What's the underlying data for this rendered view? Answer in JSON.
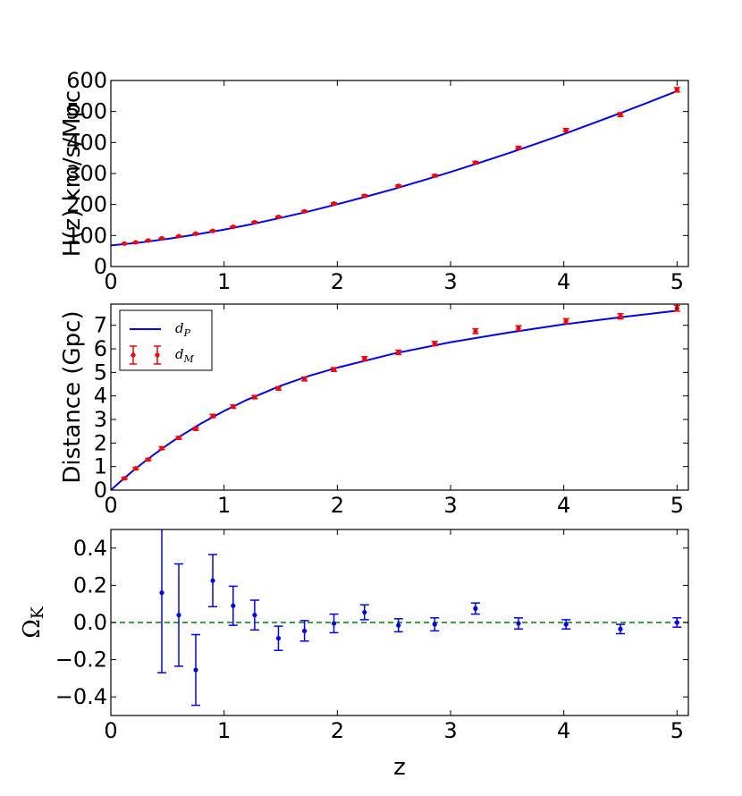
{
  "colors": {
    "model_line": "#0000ff",
    "data_red": "#ff0000",
    "omega_points": "#0000ff",
    "zero_line": "#008000",
    "frame": "#000000"
  },
  "chart_data": [
    {
      "type": "line",
      "title": "",
      "xlabel": "",
      "ylabel": "H(z) km/s/Mpc",
      "xlim": [
        0,
        5.1
      ],
      "ylim": [
        0,
        600
      ],
      "xticks": [
        "0",
        "1",
        "2",
        "3",
        "4",
        "5"
      ],
      "yticks": [
        "0",
        "100",
        "200",
        "300",
        "400",
        "500",
        "600"
      ],
      "series": [
        {
          "role": "model",
          "style": "line",
          "x": [
            0,
            0.25,
            0.5,
            0.75,
            1.0,
            1.25,
            1.5,
            1.75,
            2.0,
            2.25,
            2.5,
            2.75,
            3.0,
            3.25,
            3.5,
            3.75,
            4.0,
            4.25,
            4.5,
            4.75,
            5.0
          ],
          "y": [
            68,
            77,
            89,
            103,
            119,
            137,
            157,
            178,
            201,
            225,
            250,
            277,
            305,
            334,
            364,
            395,
            427,
            461,
            495,
            530,
            566
          ]
        },
        {
          "role": "measurements",
          "style": "errorbar",
          "x": [
            0.12,
            0.22,
            0.33,
            0.45,
            0.6,
            0.75,
            0.9,
            1.08,
            1.27,
            1.48,
            1.71,
            1.97,
            2.24,
            2.54,
            2.86,
            3.22,
            3.6,
            4.02,
            4.5,
            5.0
          ],
          "y": [
            74,
            78,
            84,
            91,
            98,
            106,
            115,
            128,
            143,
            160,
            178,
            203,
            228,
            260,
            293,
            335,
            383,
            440,
            490,
            570
          ],
          "err": [
            1,
            1,
            1,
            1,
            1,
            1.5,
            1.5,
            2,
            2,
            2,
            2.5,
            2.5,
            3,
            3,
            3.5,
            4,
            4,
            5,
            6,
            7
          ]
        }
      ]
    },
    {
      "type": "line",
      "title": "",
      "xlabel": "",
      "ylabel": "Distance (Gpc)",
      "xlim": [
        0,
        5.1
      ],
      "ylim": [
        0,
        7.9
      ],
      "xticks": [
        "0",
        "1",
        "2",
        "3",
        "4",
        "5"
      ],
      "yticks": [
        "0",
        "1",
        "2",
        "3",
        "4",
        "5",
        "6",
        "7"
      ],
      "legend": {
        "position": "upper-left",
        "entries": [
          {
            "label": "d_P",
            "base": "d",
            "sub": "P",
            "style": "line"
          },
          {
            "label": "d_M",
            "base": "d",
            "sub": "M",
            "style": "errorbar"
          }
        ]
      },
      "series": [
        {
          "name": "d_P",
          "style": "line",
          "x": [
            0,
            0.1,
            0.2,
            0.3,
            0.4,
            0.5,
            0.6,
            0.8,
            1.0,
            1.2,
            1.5,
            1.75,
            2.0,
            2.5,
            3.0,
            3.5,
            4.0,
            4.5,
            5.0
          ],
          "y": [
            0,
            0.43,
            0.84,
            1.22,
            1.58,
            1.92,
            2.25,
            2.84,
            3.36,
            3.83,
            4.43,
            4.85,
            5.2,
            5.8,
            6.28,
            6.68,
            7.04,
            7.34,
            7.62
          ]
        },
        {
          "name": "d_M",
          "style": "errorbar",
          "x": [
            0.12,
            0.22,
            0.33,
            0.45,
            0.6,
            0.75,
            0.9,
            1.08,
            1.27,
            1.48,
            1.71,
            1.97,
            2.24,
            2.54,
            2.86,
            3.22,
            3.6,
            4.02,
            4.5,
            5.0
          ],
          "y": [
            0.5,
            0.92,
            1.3,
            1.78,
            2.22,
            2.6,
            3.15,
            3.55,
            3.95,
            4.32,
            4.72,
            5.12,
            5.58,
            5.85,
            6.22,
            6.75,
            6.88,
            7.18,
            7.38,
            7.72
          ],
          "err": [
            0.04,
            0.05,
            0.05,
            0.06,
            0.06,
            0.06,
            0.07,
            0.07,
            0.07,
            0.07,
            0.08,
            0.08,
            0.09,
            0.09,
            0.09,
            0.1,
            0.1,
            0.1,
            0.11,
            0.12
          ]
        }
      ]
    },
    {
      "type": "scatter",
      "title": "",
      "xlabel": "z",
      "ylabel": "Ω_K",
      "ylabel_base": "Ω",
      "ylabel_sub": "K",
      "xlim": [
        0,
        5.1
      ],
      "ylim": [
        -0.5,
        0.5
      ],
      "xticks": [
        "0",
        "1",
        "2",
        "3",
        "4",
        "5"
      ],
      "yticks": [
        "−0.4",
        "−0.2",
        "0.0",
        "0.2",
        "0.4"
      ],
      "reference_line": {
        "y": 0.0,
        "style": "dashed"
      },
      "series": [
        {
          "style": "errorbar",
          "x": [
            0.45,
            0.6,
            0.75,
            0.9,
            1.08,
            1.27,
            1.48,
            1.71,
            1.97,
            2.24,
            2.54,
            2.86,
            3.22,
            3.6,
            4.02,
            4.5,
            5.0
          ],
          "y": [
            0.16,
            0.04,
            -0.255,
            0.225,
            0.09,
            0.04,
            -0.085,
            -0.045,
            -0.005,
            0.055,
            -0.015,
            -0.01,
            0.075,
            -0.005,
            -0.01,
            -0.035,
            0.0
          ],
          "err": [
            0.43,
            0.275,
            0.19,
            0.14,
            0.105,
            0.08,
            0.065,
            0.055,
            0.05,
            0.04,
            0.035,
            0.035,
            0.03,
            0.03,
            0.025,
            0.025,
            0.025
          ]
        }
      ]
    }
  ]
}
